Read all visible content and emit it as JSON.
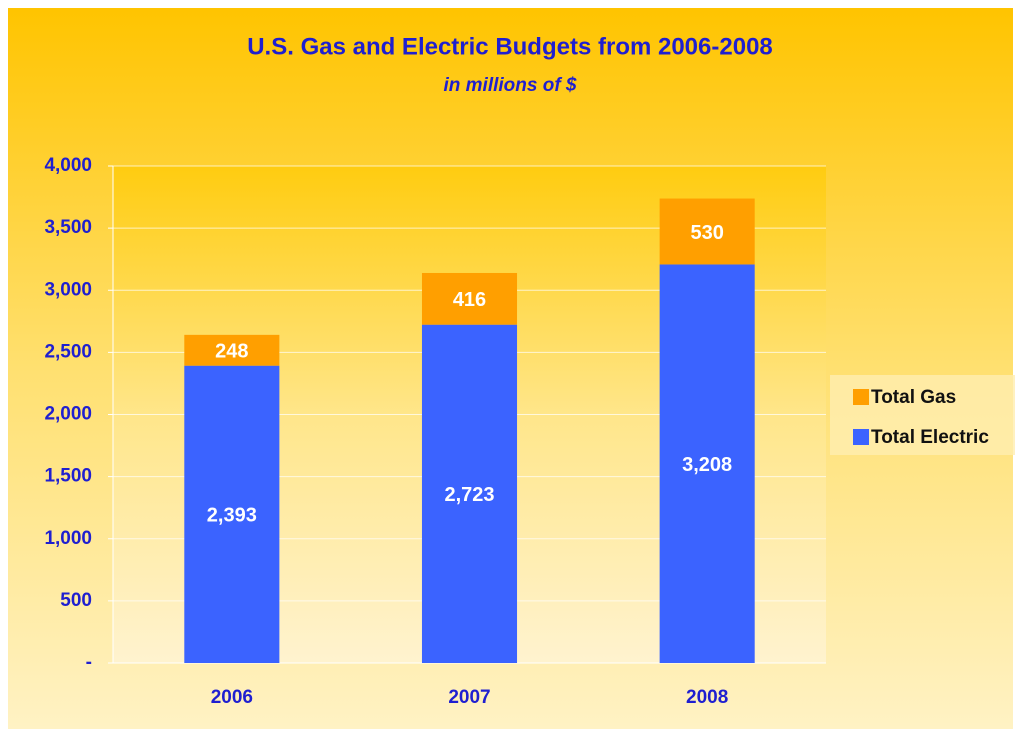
{
  "chart_data": {
    "type": "stacked_bar",
    "title": "U.S. Gas and Electric Budgets from 2006-2008",
    "subtitle": "in millions of $",
    "categories": [
      "2006",
      "2007",
      "2008"
    ],
    "series": [
      {
        "name": "Total Electric",
        "color": "#3b63ff",
        "values": [
          2393,
          2723,
          3208
        ],
        "value_labels": [
          "2,393",
          "2,723",
          "3,208"
        ]
      },
      {
        "name": "Total Gas",
        "color": "#ff9f00",
        "values": [
          248,
          416,
          530
        ]
      }
    ],
    "ylim": [
      0,
      4000
    ],
    "yticks": [
      {
        "value": 0,
        "label": "-"
      },
      500,
      {
        "value": 1000,
        "label": "1,000"
      },
      {
        "value": 1500,
        "label": "1,500"
      },
      {
        "value": 2000,
        "label": "2,000"
      },
      {
        "value": 2500,
        "label": "2,500"
      },
      {
        "value": 3000,
        "label": "3,000"
      },
      {
        "value": 3500,
        "label": "3,500"
      },
      {
        "value": 4000,
        "label": "4,000"
      }
    ],
    "grid": true,
    "legend": "right"
  }
}
